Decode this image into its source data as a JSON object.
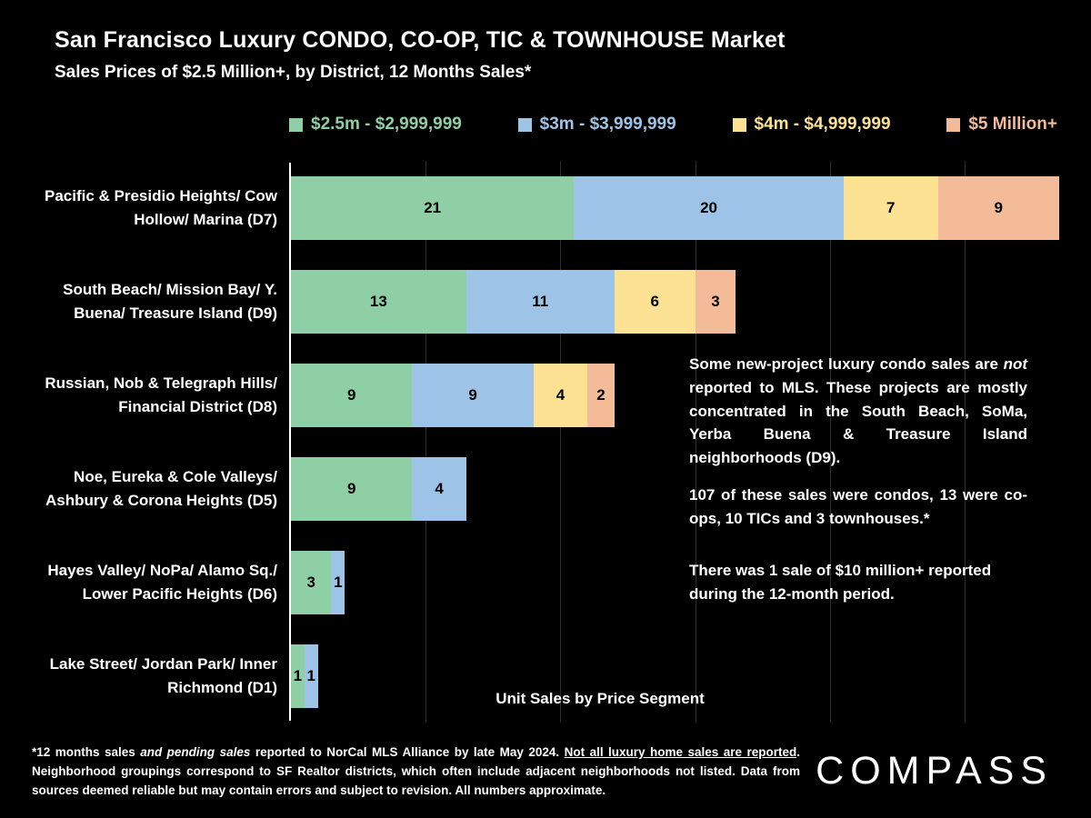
{
  "chart_data": {
    "type": "bar",
    "orientation": "horizontal",
    "stacked": true,
    "title": "San Francisco Luxury CONDO, CO-OP, TIC & TOWNHOUSE Market",
    "subtitle": "Sales Prices of $2.5 Million+, by District, 12 Months Sales*",
    "xlabel": "Unit Sales by Price Segment",
    "xmax": 57,
    "grid_interval": 10,
    "grid_on": true,
    "legend_position": "top",
    "background_color": "#000000",
    "bar_label_color": "#000000",
    "categories": [
      "Pacific & Presidio Heights/ Cow Hollow/ Marina (D7)",
      "South Beach/ Mission Bay/ Y. Buena/ Treasure Island (D9)",
      "Russian, Nob & Telegraph Hills/ Financial District (D8)",
      "Noe, Eureka & Cole Valleys/ Ashbury & Corona Heights (D5)",
      "Hayes Valley/ NoPa/ Alamo Sq./ Lower Pacific Heights (D6)",
      "Lake Street/ Jordan Park/ Inner Richmond (D1)"
    ],
    "series": [
      {
        "name": "$2.5m - $2,999,999",
        "color": "#8fcfa5",
        "values": [
          21,
          13,
          9,
          9,
          3,
          1
        ]
      },
      {
        "name": "$3m - $3,999,999",
        "color": "#9dc3e6",
        "values": [
          20,
          11,
          9,
          4,
          1,
          1
        ]
      },
      {
        "name": "$4m - $4,999,999",
        "color": "#fde293",
        "values": [
          7,
          6,
          4,
          0,
          0,
          0
        ]
      },
      {
        "name": "$5 Million+",
        "color": "#f3bb98",
        "values": [
          9,
          3,
          2,
          0,
          0,
          0
        ]
      }
    ]
  },
  "annotation": {
    "para1_parts": [
      "Some new-project luxury condo sales are ",
      "not",
      " reported to MLS. These projects are mostly concentrated in the South Beach, SoMa, Yerba Buena & Treasure Island neighborhoods (D9)."
    ],
    "para2": "107 of these sales were condos, 13 were co-ops, 10 TICs and 3 townhouses.*",
    "para3": "There was 1 sale of $10 million+ reported during the 12-month period."
  },
  "footnote_parts": {
    "p0": "*12 months sales ",
    "p1_italic": "and pending sales",
    "p2": " reported to NorCal MLS Alliance by late May 2024. ",
    "p3_underline": "Not all luxury home sales are reported",
    "p4": ". Neighborhood groupings correspond to SF Realtor districts, which often include adjacent neighborhoods not listed. Data from sources deemed reliable but may contain errors and subject to revision. All numbers approximate."
  },
  "logo_text": "COMPASS"
}
